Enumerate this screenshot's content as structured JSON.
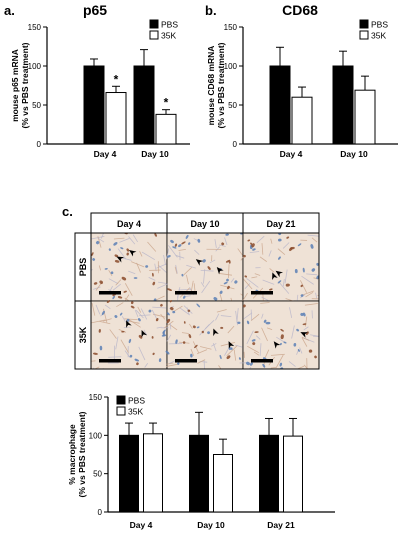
{
  "panels": {
    "a": {
      "letter": "a.",
      "title": "p65"
    },
    "b": {
      "letter": "b.",
      "title": "CD68"
    },
    "c": {
      "letter": "c."
    }
  },
  "micrographs": {
    "columns": [
      "Day 4",
      "Day 10",
      "Day 21"
    ],
    "rows": [
      "PBS",
      "35K"
    ]
  },
  "colors": {
    "pbs_fill": "#000000",
    "k35_fill": "#ffffff",
    "stain_brown": "#8a4a2a",
    "stain_blue": "#5a7fb5",
    "tissue_bg": "#efe2d6"
  },
  "chart_data": [
    {
      "id": "p65",
      "type": "bar",
      "title": "p65",
      "ylabel": [
        "mouse p65 mRNA",
        "(% vs PBS treatment)"
      ],
      "ylim": [
        0,
        150
      ],
      "yticks": [
        0,
        50,
        100,
        150
      ],
      "categories": [
        "Day 4",
        "Day 10"
      ],
      "legend_position": "top-right",
      "series": [
        {
          "name": "PBS",
          "values": [
            100,
            100
          ],
          "errors": [
            9,
            21
          ]
        },
        {
          "name": "35K",
          "values": [
            66,
            38
          ],
          "errors": [
            8,
            6
          ]
        }
      ],
      "annotations": [
        {
          "series": 1,
          "category": 0,
          "text": "*"
        },
        {
          "series": 1,
          "category": 1,
          "text": "*"
        }
      ]
    },
    {
      "id": "cd68",
      "type": "bar",
      "title": "CD68",
      "ylabel": [
        "mouse CD68 mRNA",
        "(% vs PBS treatment)"
      ],
      "ylim": [
        0,
        150
      ],
      "yticks": [
        0,
        50,
        100,
        150
      ],
      "categories": [
        "Day 4",
        "Day 10"
      ],
      "legend_position": "top-right",
      "series": [
        {
          "name": "PBS",
          "values": [
            100,
            100
          ],
          "errors": [
            24,
            19
          ]
        },
        {
          "name": "35K",
          "values": [
            60,
            69
          ],
          "errors": [
            13,
            18
          ]
        }
      ]
    },
    {
      "id": "macrophage",
      "type": "bar",
      "ylabel": [
        "% macrophage",
        "(% vs PBS treatment)"
      ],
      "ylim": [
        0,
        150
      ],
      "yticks": [
        0,
        50,
        100,
        150
      ],
      "categories": [
        "Day 4",
        "Day 10",
        "Day 21"
      ],
      "legend_position": "top-left",
      "series": [
        {
          "name": "PBS",
          "values": [
            100,
            100,
            100
          ],
          "errors": [
            16,
            30,
            22
          ]
        },
        {
          "name": "35K",
          "values": [
            102,
            75,
            99
          ],
          "errors": [
            14,
            20,
            23
          ]
        }
      ]
    }
  ]
}
